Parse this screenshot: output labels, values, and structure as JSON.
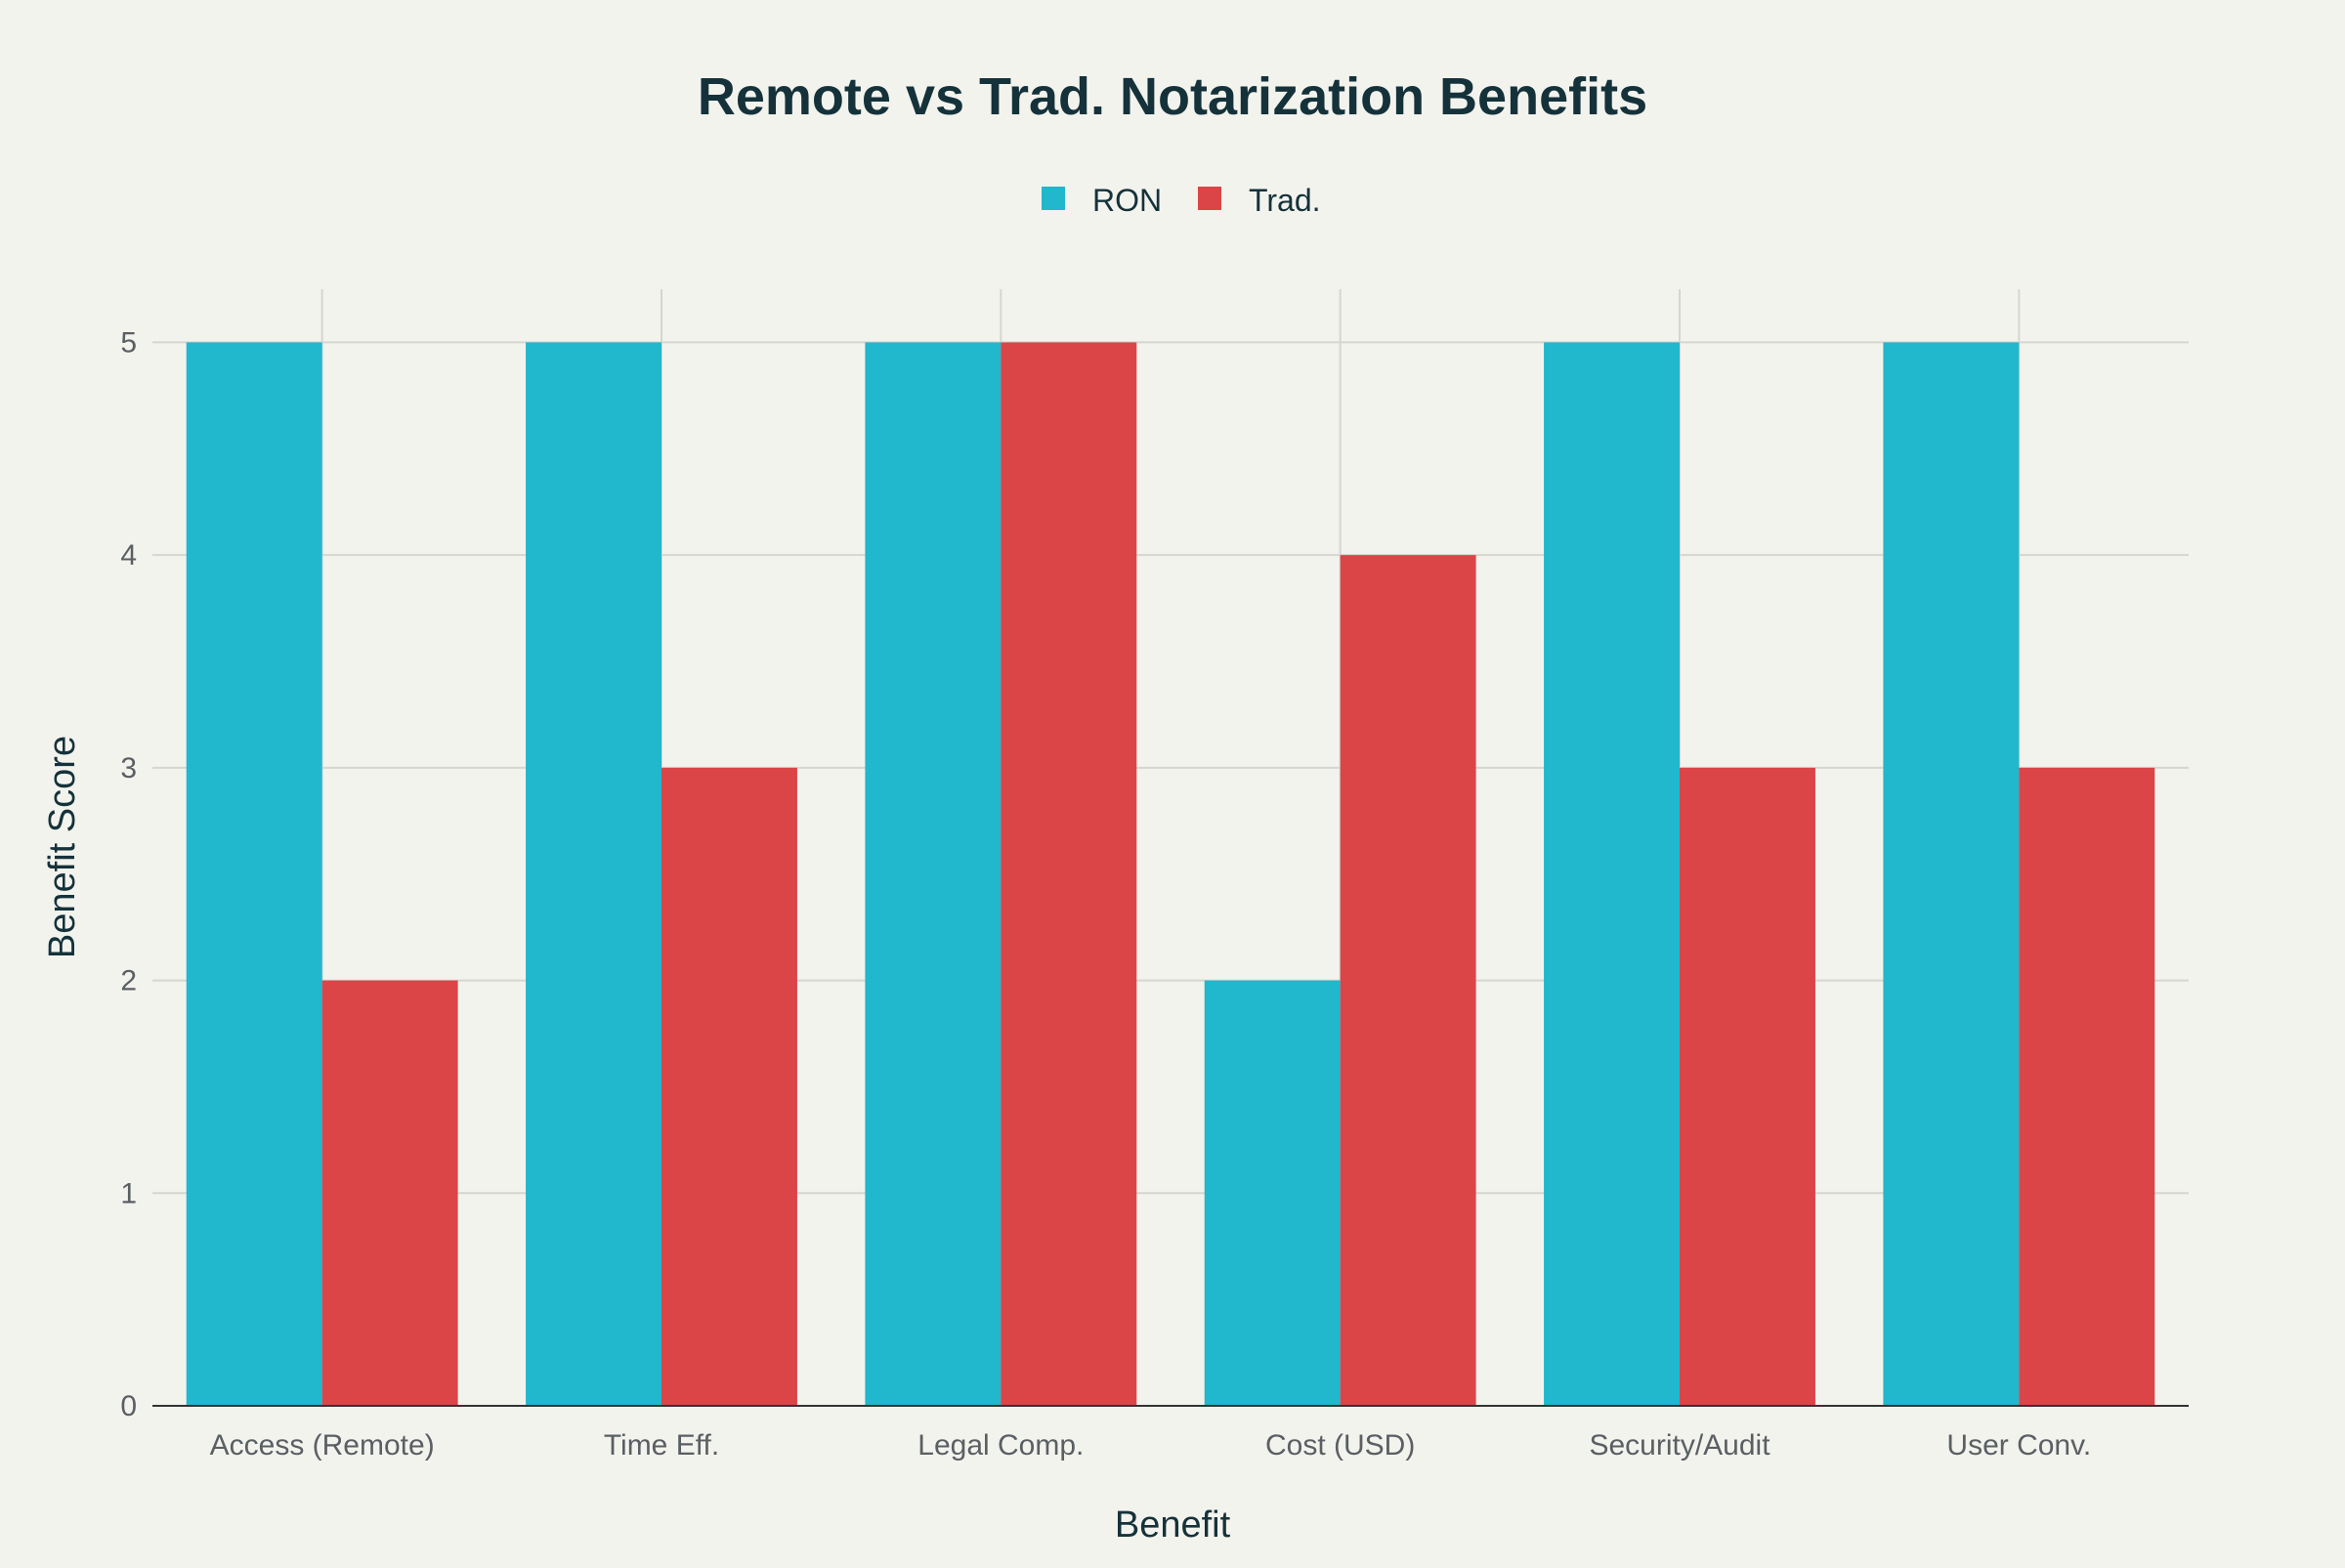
{
  "chart_data": {
    "type": "bar",
    "title": "Remote vs Trad. Notarization Benefits",
    "xlabel": "Benefit",
    "ylabel": "Benefit Score",
    "categories": [
      "Access (Remote)",
      "Time Eff.",
      "Legal Comp.",
      "Cost (USD)",
      "Security/Audit",
      "User Conv."
    ],
    "series": [
      {
        "name": "RON",
        "color": "#21b7cc",
        "values": [
          5,
          5,
          5,
          2,
          5,
          5
        ]
      },
      {
        "name": "Trad.",
        "color": "#db4547",
        "values": [
          2,
          3,
          5,
          4,
          3,
          3
        ]
      }
    ],
    "ylim": [
      0,
      5.25
    ],
    "yticks": [
      0,
      1,
      2,
      3,
      4,
      5
    ],
    "grid": true,
    "legend_position": "top-center"
  }
}
